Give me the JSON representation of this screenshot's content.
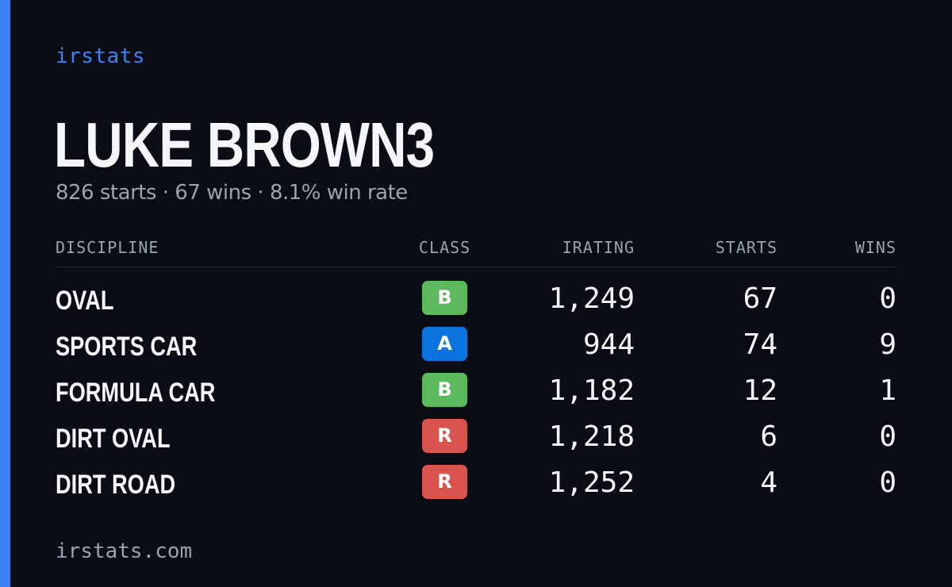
{
  "brand": "irstats",
  "driver": {
    "name": "LUKE BROWN3",
    "summary": "826 starts · 67 wins · 8.1% win rate"
  },
  "table": {
    "headers": {
      "discipline": "DISCIPLINE",
      "class": "CLASS",
      "irating": "IRATING",
      "starts": "STARTS",
      "wins": "WINS"
    },
    "rows": [
      {
        "discipline": "OVAL",
        "class": "B",
        "class_color": "#5cb85c",
        "irating": "1,249",
        "starts": "67",
        "wins": "0"
      },
      {
        "discipline": "SPORTS CAR",
        "class": "A",
        "class_color": "#0b74de",
        "irating": "944",
        "starts": "74",
        "wins": "9"
      },
      {
        "discipline": "FORMULA CAR",
        "class": "B",
        "class_color": "#5cb85c",
        "irating": "1,182",
        "starts": "12",
        "wins": "1"
      },
      {
        "discipline": "DIRT OVAL",
        "class": "R",
        "class_color": "#d9534f",
        "irating": "1,218",
        "starts": "6",
        "wins": "0"
      },
      {
        "discipline": "DIRT ROAD",
        "class": "R",
        "class_color": "#d9534f",
        "irating": "1,252",
        "starts": "4",
        "wins": "0"
      }
    ]
  },
  "footer": "irstats.com",
  "colors": {
    "background": "#0a0d14",
    "accent": "#3b82f6",
    "muted_text": "#9aa3b2"
  }
}
